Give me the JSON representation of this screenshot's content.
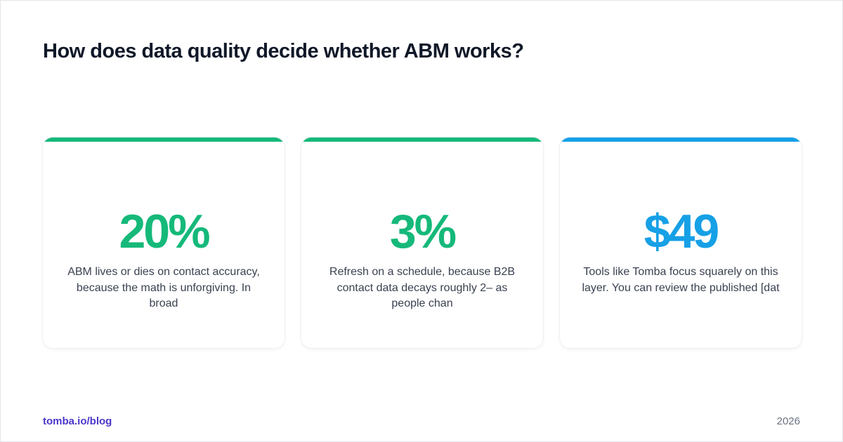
{
  "title": "How does data quality decide whether ABM works?",
  "colors": {
    "green": "#15b97a",
    "blue": "#16a0e6",
    "footer_link": "#4a36c9"
  },
  "cards": [
    {
      "value": "20%",
      "description": "ABM lives or dies on contact accuracy, because the math is unforgiving. In broad",
      "accent": "#15b97a"
    },
    {
      "value": "3%",
      "description": "Refresh on a schedule, because B2B contact data decays roughly 2– as people chan",
      "accent": "#15b97a"
    },
    {
      "value": "$49",
      "description": "Tools like Tomba focus squarely on this layer. You can review the published [dat",
      "accent": "#16a0e6"
    }
  ],
  "footer": {
    "link": "tomba.io/blog",
    "year": "2026"
  }
}
